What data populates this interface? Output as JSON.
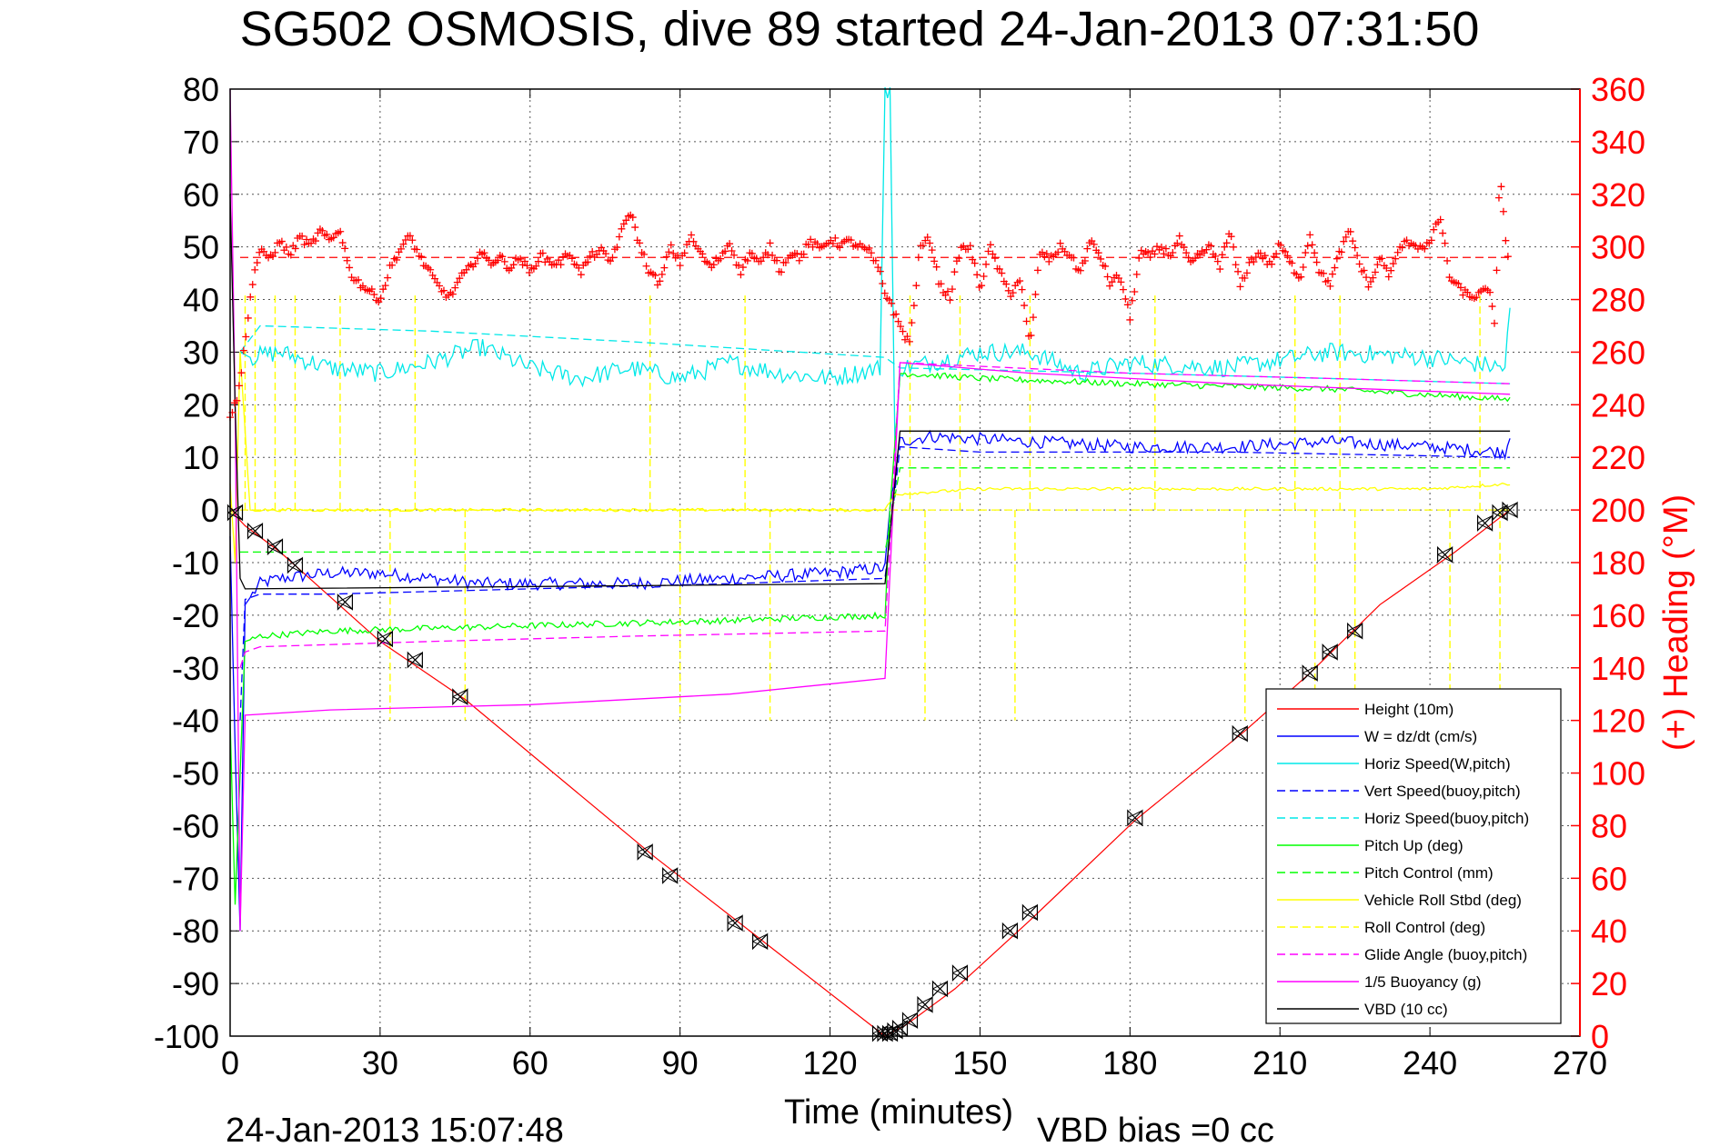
{
  "chart_data": {
    "type": "line",
    "title": "SG502 OSMOSIS, dive 89 started 24-Jan-2013 07:31:50",
    "xlabel": "Time (minutes)",
    "ylabel_right": "(+) Heading (°M)",
    "footer_left": "24-Jan-2013 15:07:48",
    "footer_right": "VBD bias =0 cc",
    "xlim": [
      0,
      270
    ],
    "ylim": [
      -100,
      80
    ],
    "y2lim": [
      0,
      360
    ],
    "grid": true,
    "legend_position": "bottom-right",
    "xticks": [
      "0",
      "30",
      "60",
      "90",
      "120",
      "150",
      "180",
      "210",
      "240",
      "270"
    ],
    "yticks": [
      "80",
      "70",
      "60",
      "50",
      "40",
      "30",
      "20",
      "10",
      "0",
      "-10",
      "-20",
      "-30",
      "-40",
      "-50",
      "-60",
      "-70",
      "-80",
      "-90",
      "-100"
    ],
    "y2ticks": [
      "360",
      "340",
      "320",
      "300",
      "280",
      "260",
      "240",
      "220",
      "200",
      "180",
      "160",
      "140",
      "120",
      "100",
      "80",
      "60",
      "40",
      "20",
      "0"
    ],
    "heading_mean": 296,
    "series": [
      {
        "name": "Height (10m)",
        "color": "#ff0000",
        "dash": false,
        "x": [
          0,
          1,
          3,
          10,
          30,
          47,
          85,
          108,
          131,
          133,
          135,
          145,
          160,
          181,
          203,
          216,
          230,
          245,
          256
        ],
        "y": [
          1,
          -1,
          -3,
          -8,
          -25,
          -36,
          -66,
          -83,
          -100,
          -99,
          -98,
          -91,
          -78,
          -59,
          -42,
          -31,
          -18,
          -8,
          0
        ]
      },
      {
        "name": "W = dz/dt (cm/s)",
        "color": "#0000ff",
        "dash": false,
        "x": [
          0,
          1,
          2,
          3,
          6,
          10,
          20,
          30,
          40,
          50,
          60,
          80,
          100,
          120,
          131,
          132,
          134,
          140,
          160,
          180,
          200,
          220,
          240,
          255,
          256
        ],
        "y": [
          -5,
          -45,
          -80,
          -18,
          -14,
          -13,
          -12,
          -12,
          -13,
          -14,
          -14,
          -14,
          -13,
          -12,
          -11,
          0,
          13,
          14,
          13,
          12,
          12,
          13,
          12,
          11,
          14
        ]
      },
      {
        "name": "Horiz Speed(W,pitch)",
        "color": "#00e8e8",
        "dash": false,
        "x": [
          2,
          4,
          10,
          20,
          30,
          40,
          50,
          60,
          70,
          80,
          90,
          100,
          110,
          120,
          130,
          131,
          132,
          133,
          134,
          140,
          150,
          160,
          170,
          180,
          200,
          220,
          240,
          255,
          256
        ],
        "y": [
          30,
          29,
          30,
          27,
          26,
          28,
          31,
          27,
          25,
          27,
          25,
          28,
          26,
          25,
          27,
          80,
          80,
          10,
          27,
          28,
          30,
          30,
          26,
          28,
          27,
          30,
          29,
          27,
          38
        ]
      },
      {
        "name": "Vert Speed(buoy,pitch)",
        "color": "#0000ff",
        "dash": true,
        "x": [
          2,
          3,
          6,
          20,
          60,
          100,
          131,
          134,
          150,
          200,
          256
        ],
        "y": [
          -40,
          -17,
          -16,
          -16,
          -15,
          -14,
          -13,
          12,
          11,
          11,
          10
        ]
      },
      {
        "name": "Horiz Speed(buoy,pitch)",
        "color": "#00e8e8",
        "dash": true,
        "x": [
          2,
          6,
          40,
          80,
          131,
          134,
          180,
          220,
          256
        ],
        "y": [
          30,
          35,
          34,
          32,
          29,
          27,
          26,
          25,
          24
        ]
      },
      {
        "name": "Pitch Up (deg)",
        "color": "#00ff00",
        "dash": false,
        "x": [
          0,
          1,
          2,
          3,
          6,
          20,
          60,
          100,
          131,
          132,
          134,
          150,
          180,
          220,
          256
        ],
        "y": [
          -40,
          -75,
          -50,
          -25,
          -24,
          -23,
          -22,
          -21,
          -20,
          0,
          26,
          25,
          24,
          23,
          21
        ]
      },
      {
        "name": "Pitch Control (mm)",
        "color": "#00ff00",
        "dash": true,
        "x": [
          2,
          6,
          131,
          134,
          256
        ],
        "y": [
          -8,
          -8,
          -8,
          8,
          8
        ]
      },
      {
        "name": "Vehicle Roll Stbd (deg)",
        "color": "#ffff00",
        "dash": false,
        "x": [
          0,
          1,
          2,
          4,
          40,
          80,
          120,
          131,
          133,
          150,
          200,
          240,
          256
        ],
        "y": [
          5,
          -10,
          30,
          0,
          0,
          0,
          0,
          0,
          3,
          4,
          4,
          4,
          5
        ]
      },
      {
        "name": "Roll Control (deg)",
        "color": "#ffff00",
        "dash": true,
        "x": [
          2,
          6,
          131,
          134,
          256
        ],
        "y": [
          0,
          0,
          0,
          0,
          0
        ]
      },
      {
        "name": "Glide Angle (buoy,pitch)",
        "color": "#ff00ff",
        "dash": true,
        "x": [
          2,
          3,
          6,
          40,
          80,
          131,
          134,
          180,
          220,
          256
        ],
        "y": [
          -30,
          -27,
          -26,
          -25,
          -24,
          -23,
          28,
          26,
          25,
          24
        ]
      },
      {
        "name": "1/5 Buoyancy (g)",
        "color": "#ff00ff",
        "dash": false,
        "x": [
          0,
          1,
          2,
          3,
          20,
          60,
          100,
          131,
          134,
          160,
          200,
          256
        ],
        "y": [
          80,
          20,
          -80,
          -39,
          -38,
          -37,
          -35,
          -32,
          28,
          26,
          24,
          22
        ]
      },
      {
        "name": "VBD (10 cc)",
        "color": "#000000",
        "dash": false,
        "x": [
          0,
          1,
          2,
          3,
          131,
          134,
          256
        ],
        "y": [
          60,
          20,
          -13,
          -15,
          -14,
          15,
          15
        ]
      }
    ],
    "heading_series": {
      "name": "Heading",
      "color": "#ff0000",
      "marker": "+",
      "x": [
        0,
        1,
        2,
        3,
        4,
        5,
        6,
        8,
        10,
        12,
        14,
        16,
        18,
        20,
        22,
        24,
        26,
        28,
        30,
        32,
        34,
        36,
        38,
        40,
        42,
        44,
        46,
        48,
        50,
        52,
        54,
        56,
        58,
        60,
        62,
        64,
        66,
        68,
        70,
        72,
        74,
        76,
        78,
        80,
        82,
        84,
        86,
        88,
        90,
        92,
        94,
        96,
        98,
        100,
        102,
        104,
        106,
        108,
        110,
        112,
        114,
        116,
        118,
        120,
        122,
        124,
        126,
        128,
        130,
        131,
        132,
        133,
        134,
        135,
        136,
        138,
        140,
        142,
        144,
        146,
        148,
        150,
        152,
        154,
        156,
        158,
        160,
        162,
        164,
        166,
        168,
        170,
        172,
        174,
        176,
        178,
        180,
        182,
        184,
        186,
        188,
        190,
        192,
        194,
        196,
        198,
        200,
        202,
        204,
        206,
        208,
        210,
        212,
        214,
        216,
        218,
        220,
        222,
        224,
        226,
        228,
        230,
        232,
        234,
        236,
        238,
        240,
        242,
        244,
        246,
        248,
        250,
        252,
        253,
        254,
        255,
        256
      ],
      "y": [
        236,
        240,
        248,
        265,
        280,
        292,
        298,
        296,
        302,
        297,
        304,
        300,
        306,
        302,
        307,
        290,
        286,
        283,
        280,
        292,
        299,
        304,
        296,
        290,
        284,
        281,
        288,
        292,
        298,
        294,
        296,
        292,
        296,
        290,
        297,
        294,
        294,
        298,
        290,
        296,
        299,
        294,
        304,
        314,
        300,
        290,
        286,
        300,
        294,
        304,
        298,
        292,
        296,
        302,
        290,
        298,
        293,
        300,
        291,
        298,
        296,
        302,
        299,
        303,
        301,
        302,
        300,
        298,
        290,
        282,
        280,
        274,
        270,
        266,
        264,
        300,
        303,
        285,
        281,
        299,
        300,
        284,
        300,
        290,
        282,
        288,
        262,
        298,
        295,
        300,
        297,
        290,
        302,
        297,
        286,
        289,
        273,
        298,
        296,
        300,
        297,
        303,
        293,
        297,
        300,
        293,
        306,
        285,
        294,
        298,
        293,
        301,
        294,
        288,
        305,
        290,
        286,
        298,
        306,
        293,
        285,
        296,
        289,
        300,
        302,
        300,
        301,
        312,
        288,
        284,
        281,
        282,
        284,
        268,
        330,
        306,
        290
      ]
    },
    "glide_markers": {
      "x": [
        1,
        5,
        9,
        13,
        23,
        31,
        37,
        46,
        83,
        88,
        101,
        106,
        130,
        131,
        132,
        133,
        134,
        136,
        139,
        142,
        146,
        156,
        160,
        181,
        202,
        210,
        216,
        220,
        225,
        243,
        251,
        254,
        256
      ],
      "y": [
        -0.5,
        -4,
        -7,
        -10.5,
        -17.5,
        -24.5,
        -28.5,
        -35.5,
        -65,
        -69.5,
        -78.5,
        -82,
        -99.5,
        -99.5,
        -99.5,
        -99,
        -98.5,
        -97,
        -94,
        -91,
        -88,
        -80,
        -76.5,
        -58.5,
        -42.5,
        -36,
        -31,
        -27,
        -23,
        -8.5,
        -2.5,
        -0.5,
        0
      ]
    },
    "spikes": {
      "roll_up": [
        3,
        5,
        9,
        13,
        22,
        37,
        84,
        103,
        136,
        146,
        160,
        185,
        213,
        222,
        250
      ],
      "roll_down": [
        32,
        47,
        90,
        108,
        139,
        157,
        203,
        217,
        225,
        244,
        254
      ],
      "roll_dash_down_to": -40,
      "roll_dash_up_to": 41
    }
  }
}
